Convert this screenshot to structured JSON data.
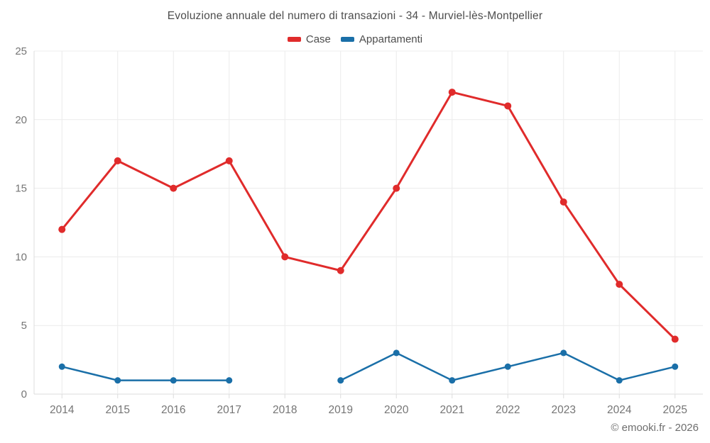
{
  "header": {
    "title": "Evoluzione annuale del numero di transazioni - 34 - Murviel-lès-Montpellier"
  },
  "legend": {
    "items": [
      {
        "label": "Case",
        "color": "#e02b2b"
      },
      {
        "label": "Appartamenti",
        "color": "#1a6fa8"
      }
    ]
  },
  "footer": {
    "credit": "© emooki.fr - 2026"
  },
  "colors": {
    "case_red": "#e02b2b",
    "appartamenti_blue": "#1a6fa8",
    "grid_line": "#ececec",
    "axis_line": "#dcdcdc",
    "tick_label": "#757575"
  },
  "chart_data": {
    "type": "line",
    "title": "Evoluzione annuale del numero di transazioni - 34 - Murviel-lès-Montpellier",
    "categories": [
      "2014",
      "2015",
      "2016",
      "2017",
      "2018",
      "2019",
      "2020",
      "2021",
      "2022",
      "2023",
      "2024",
      "2025"
    ],
    "series": [
      {
        "name": "Case",
        "color": "#e02b2b",
        "values": [
          12,
          17,
          15,
          17,
          10,
          9,
          15,
          22,
          21,
          14,
          8,
          4
        ]
      },
      {
        "name": "Appartamenti",
        "color": "#1a6fa8",
        "values": [
          2,
          1,
          1,
          1,
          null,
          1,
          3,
          1,
          2,
          3,
          1,
          2
        ]
      }
    ],
    "xlabel": "",
    "ylabel": "",
    "ylim": [
      0,
      25
    ],
    "yticks": [
      0,
      5,
      10,
      15,
      20,
      25
    ],
    "grid": true,
    "legend_position": "top"
  }
}
